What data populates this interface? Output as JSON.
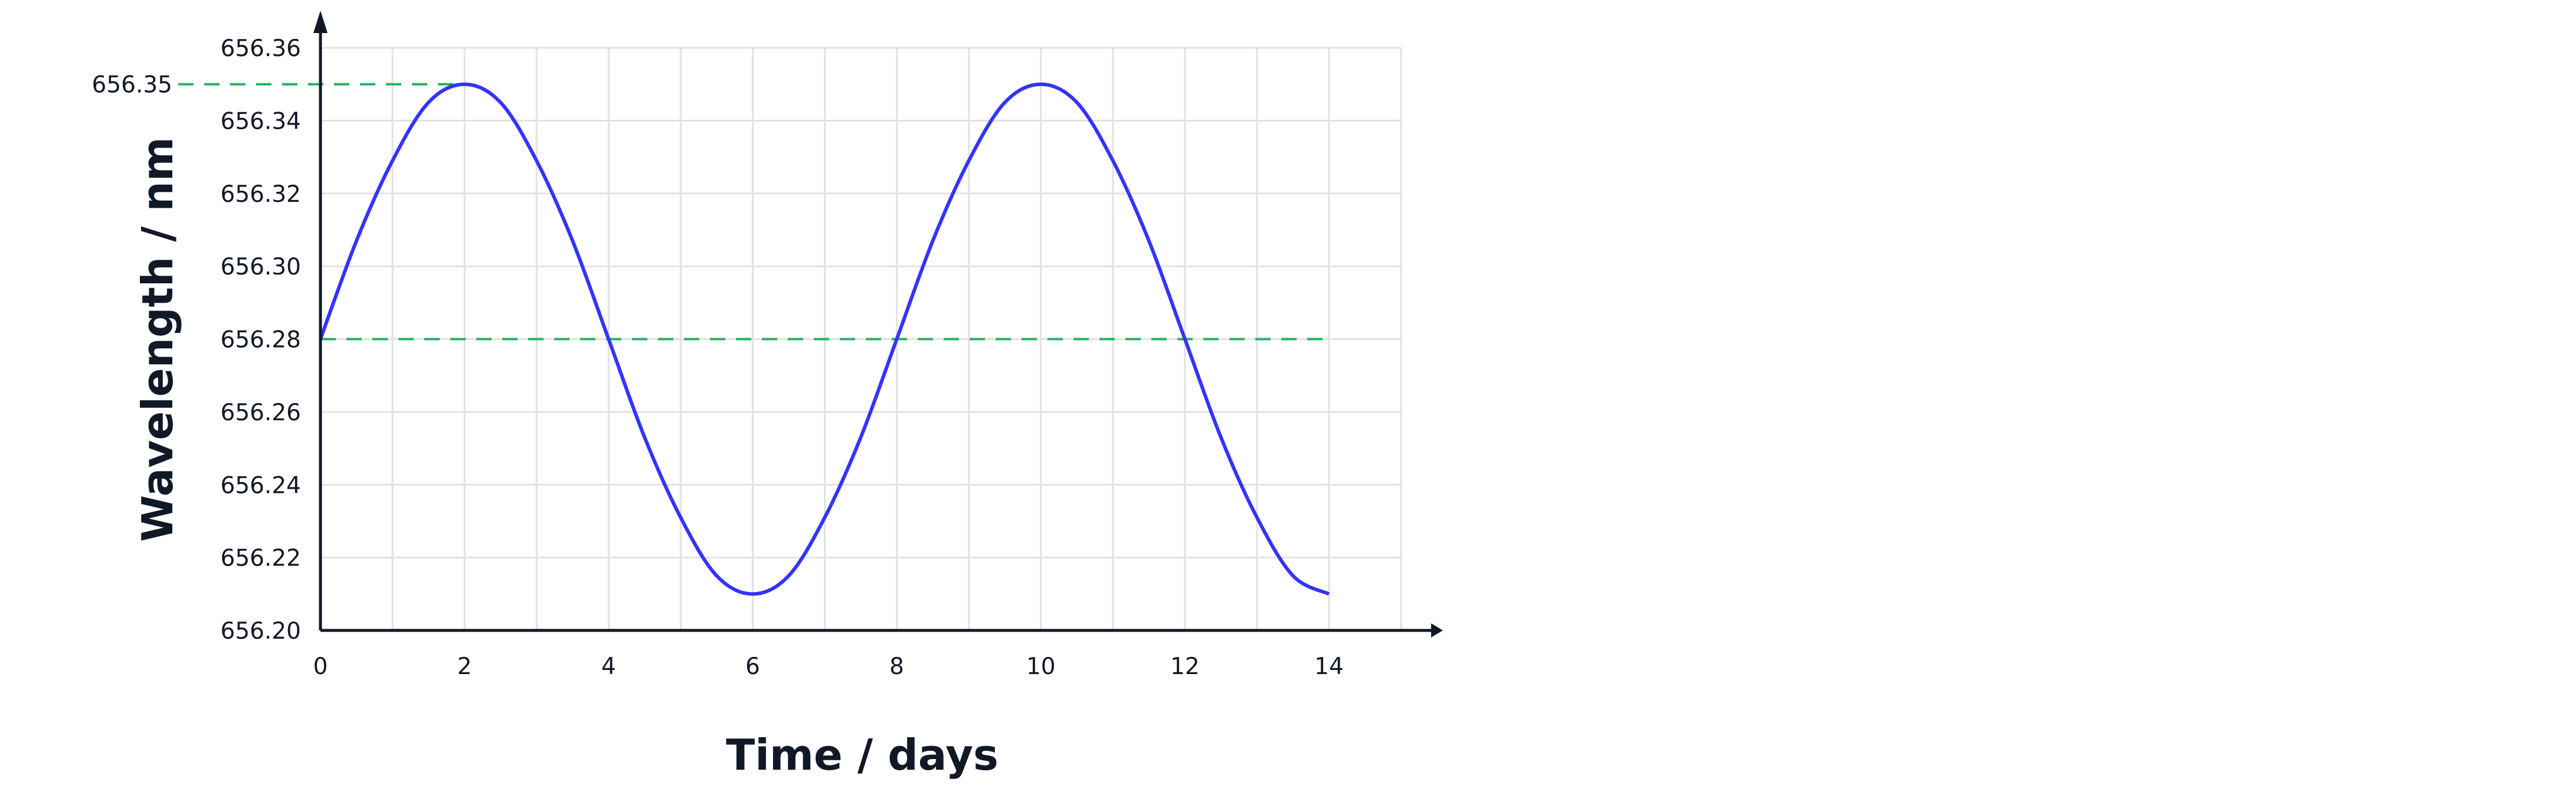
{
  "chart_data": {
    "type": "line",
    "xlabel": "Time / days",
    "ylabel": "Wavelength / nm",
    "xlim": [
      0,
      15
    ],
    "ylim": [
      656.2,
      656.36
    ],
    "x_ticks": [
      "0",
      "2",
      "4",
      "6",
      "8",
      "10",
      "12",
      "14"
    ],
    "y_ticks": [
      "656.20",
      "656.22",
      "656.24",
      "656.26",
      "656.28",
      "656.30",
      "656.32",
      "656.34",
      "656.36"
    ],
    "grid": true,
    "series": [
      {
        "color": "#3333ff",
        "x": [
          0,
          0.5,
          1,
          1.5,
          2,
          2.5,
          3,
          3.5,
          4,
          4.5,
          5,
          5.5,
          6,
          6.5,
          7,
          7.5,
          8,
          8.5,
          9,
          9.5,
          10,
          10.5,
          11,
          11.5,
          12,
          12.5,
          13,
          13.5,
          14
        ],
        "y": [
          656.28,
          656.307,
          656.329,
          656.345,
          656.35,
          656.345,
          656.329,
          656.307,
          656.28,
          656.253,
          656.231,
          656.215,
          656.21,
          656.215,
          656.231,
          656.253,
          656.28,
          656.307,
          656.329,
          656.345,
          656.35,
          656.345,
          656.329,
          656.307,
          656.28,
          656.253,
          656.231,
          656.215,
          656.21
        ]
      }
    ],
    "reference_lines": [
      {
        "label": "656.35",
        "value": 656.35,
        "x_end": 2,
        "color": "#22b35e"
      },
      {
        "label": "656.28",
        "value": 656.28,
        "x_end": 14,
        "color": "#22b35e"
      }
    ],
    "axis_color": "#111827",
    "grid_color": "#e2e2e2"
  }
}
